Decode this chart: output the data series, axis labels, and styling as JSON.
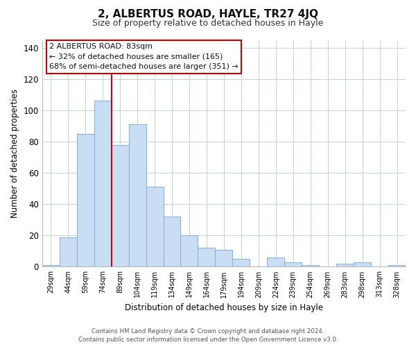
{
  "title": "2, ALBERTUS ROAD, HAYLE, TR27 4JQ",
  "subtitle": "Size of property relative to detached houses in Hayle",
  "xlabel": "Distribution of detached houses by size in Hayle",
  "ylabel": "Number of detached properties",
  "categories": [
    "29sqm",
    "44sqm",
    "59sqm",
    "74sqm",
    "89sqm",
    "104sqm",
    "119sqm",
    "134sqm",
    "149sqm",
    "164sqm",
    "179sqm",
    "194sqm",
    "209sqm",
    "224sqm",
    "239sqm",
    "254sqm",
    "269sqm",
    "283sqm",
    "298sqm",
    "313sqm",
    "328sqm"
  ],
  "values": [
    1,
    19,
    85,
    106,
    78,
    91,
    51,
    32,
    20,
    12,
    11,
    5,
    0,
    6,
    3,
    1,
    0,
    2,
    3,
    0,
    1
  ],
  "bar_color": "#c9ddf5",
  "bar_edge_color": "#8fb4d9",
  "highlight_line_color": "#cc0000",
  "highlight_line_index": 3.5,
  "annotation_title": "2 ALBERTUS ROAD: 83sqm",
  "annotation_line1": "← 32% of detached houses are smaller (165)",
  "annotation_line2": "68% of semi-detached houses are larger (351) →",
  "ylim": [
    0,
    145
  ],
  "yticks": [
    0,
    20,
    40,
    60,
    80,
    100,
    120,
    140
  ],
  "footer_line1": "Contains HM Land Registry data © Crown copyright and database right 2024.",
  "footer_line2": "Contains public sector information licensed under the Open Government Licence v3.0.",
  "background_color": "#ffffff",
  "grid_color": "#c0d0e8"
}
